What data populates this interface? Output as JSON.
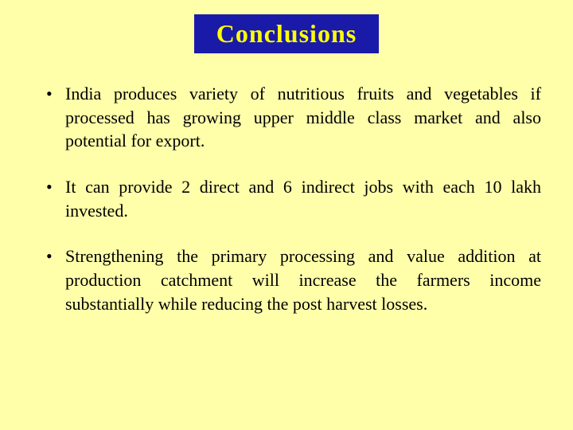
{
  "slide": {
    "title": "Conclusions",
    "bullets": [
      "India produces variety of nutritious fruits and vegetables if processed has growing upper middle class market and also potential for export.",
      "It can provide 2 direct and 6 indirect jobs with each 10 lakh invested.",
      "Strengthening the primary processing and value addition at production catchment will increase the farmers income substantially while reducing the post harvest losses."
    ]
  },
  "style": {
    "background_color": "#ffffaa",
    "title_box_bg": "#1a1aa8",
    "title_text_color": "#ffff00",
    "title_fontsize": 32,
    "body_text_color": "#000000",
    "body_fontsize": 22,
    "bullet_spacing": 28,
    "line_height": 1.35,
    "text_align": "justify"
  }
}
